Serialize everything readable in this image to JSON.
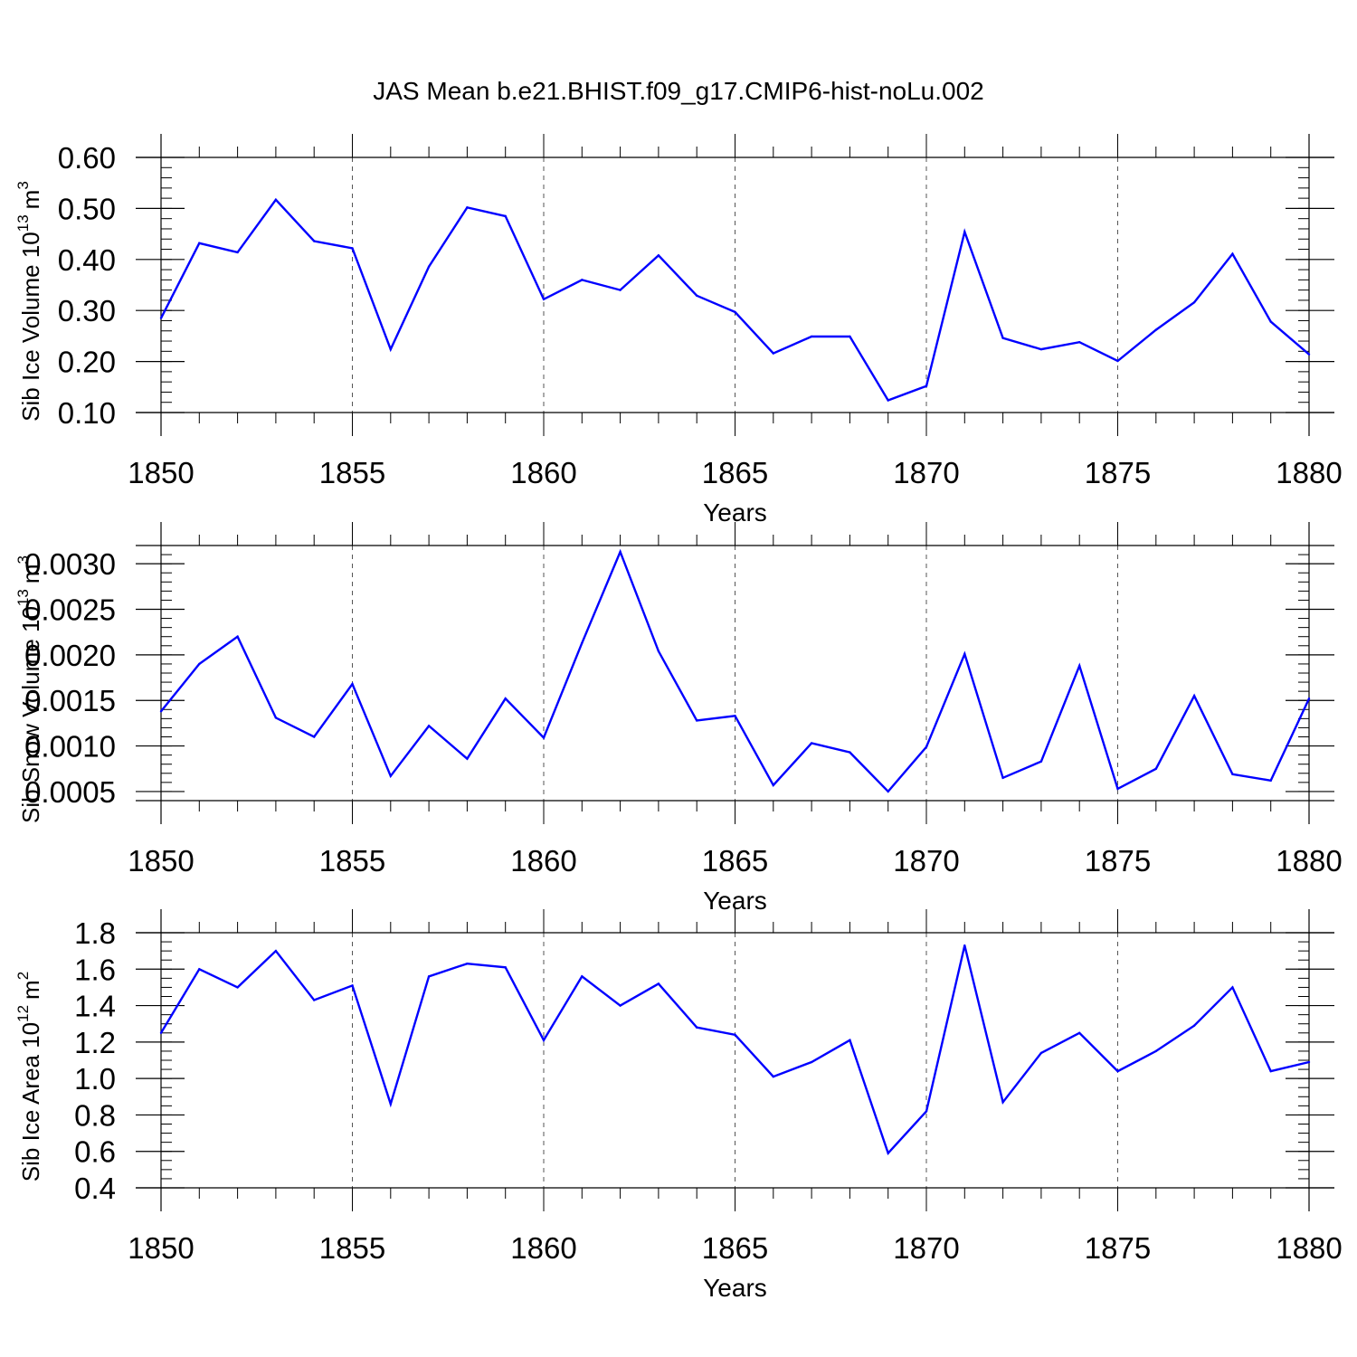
{
  "chart_data": [
    {
      "type": "line",
      "title": "JAS Mean b.e21.BHIST.f09_g17.CMIP6-hist-noLu.002",
      "xlabel": "Years",
      "ylabel": {
        "text": "Sib Ice Volume 10",
        "exponent": "13",
        "unit": "m",
        "unit_exponent": "3"
      },
      "xlim": [
        1850,
        1880
      ],
      "ylim": [
        0.1,
        0.6
      ],
      "x_ticks": [
        "1850",
        "1855",
        "1860",
        "1865",
        "1870",
        "1875",
        "1880"
      ],
      "y_ticks": [
        "0.10",
        "0.20",
        "0.30",
        "0.40",
        "0.50",
        "0.60"
      ],
      "y_tick_values": [
        0.1,
        0.2,
        0.3,
        0.4,
        0.5,
        0.6
      ],
      "y_minor_step": 0.02,
      "grid": "x-dashed",
      "line_color": "#0000ff",
      "x": [
        1850,
        1851,
        1852,
        1853,
        1854,
        1855,
        1856,
        1857,
        1858,
        1859,
        1860,
        1861,
        1862,
        1863,
        1864,
        1865,
        1866,
        1867,
        1868,
        1869,
        1870,
        1871,
        1872,
        1873,
        1874,
        1875,
        1876,
        1877,
        1878,
        1879,
        1880
      ],
      "values": [
        0.285,
        0.432,
        0.414,
        0.517,
        0.436,
        0.422,
        0.224,
        0.386,
        0.502,
        0.485,
        0.322,
        0.36,
        0.34,
        0.408,
        0.329,
        0.297,
        0.216,
        0.249,
        0.249,
        0.124,
        0.152,
        0.454,
        0.246,
        0.224,
        0.238,
        0.201,
        0.262,
        0.316,
        0.411,
        0.278,
        0.214
      ]
    },
    {
      "type": "line",
      "title": "",
      "xlabel": "Years",
      "ylabel": {
        "text": "Sib Snow Volume 10",
        "exponent": "13",
        "unit": "m",
        "unit_exponent": "3"
      },
      "xlim": [
        1850,
        1880
      ],
      "ylim": [
        0.0004,
        0.0032
      ],
      "x_ticks": [
        "1850",
        "1855",
        "1860",
        "1865",
        "1870",
        "1875",
        "1880"
      ],
      "y_ticks": [
        "0.0005",
        "0.0010",
        "0.0015",
        "0.0020",
        "0.0025",
        "0.0030"
      ],
      "y_tick_values": [
        0.0005,
        0.001,
        0.0015,
        0.002,
        0.0025,
        0.003
      ],
      "y_minor_step": 0.0001,
      "grid": "x-dashed",
      "line_color": "#0000ff",
      "x": [
        1850,
        1851,
        1852,
        1853,
        1854,
        1855,
        1856,
        1857,
        1858,
        1859,
        1860,
        1861,
        1862,
        1863,
        1864,
        1865,
        1866,
        1867,
        1868,
        1869,
        1870,
        1871,
        1872,
        1873,
        1874,
        1875,
        1876,
        1877,
        1878,
        1879,
        1880
      ],
      "values": [
        0.00138,
        0.0019,
        0.0022,
        0.00131,
        0.0011,
        0.00168,
        0.00067,
        0.00122,
        0.00086,
        0.00152,
        0.00109,
        0.00213,
        0.00313,
        0.00204,
        0.00128,
        0.00133,
        0.00057,
        0.00103,
        0.00093,
        0.0005,
        0.00099,
        0.00201,
        0.00065,
        0.00083,
        0.00188,
        0.00053,
        0.00075,
        0.00155,
        0.00069,
        0.00062,
        0.00152
      ]
    },
    {
      "type": "line",
      "title": "",
      "xlabel": "Years",
      "ylabel": {
        "text": "Sib Ice Area 10",
        "exponent": "12",
        "unit": "m",
        "unit_exponent": "2"
      },
      "xlim": [
        1850,
        1880
      ],
      "ylim": [
        0.4,
        1.8
      ],
      "x_ticks": [
        "1850",
        "1855",
        "1860",
        "1865",
        "1870",
        "1875",
        "1880"
      ],
      "y_ticks": [
        "0.4",
        "0.6",
        "0.8",
        "1.0",
        "1.2",
        "1.4",
        "1.6",
        "1.8"
      ],
      "y_tick_values": [
        0.4,
        0.6,
        0.8,
        1.0,
        1.2,
        1.4,
        1.6,
        1.8
      ],
      "y_minor_step": 0.05,
      "grid": "x-dashed",
      "line_color": "#0000ff",
      "x": [
        1850,
        1851,
        1852,
        1853,
        1854,
        1855,
        1856,
        1857,
        1858,
        1859,
        1860,
        1861,
        1862,
        1863,
        1864,
        1865,
        1866,
        1867,
        1868,
        1869,
        1870,
        1871,
        1872,
        1873,
        1874,
        1875,
        1876,
        1877,
        1878,
        1879,
        1880
      ],
      "values": [
        1.25,
        1.6,
        1.5,
        1.7,
        1.43,
        1.51,
        0.86,
        1.56,
        1.63,
        1.61,
        1.21,
        1.56,
        1.4,
        1.52,
        1.28,
        1.24,
        1.01,
        1.09,
        1.21,
        0.59,
        0.82,
        1.73,
        0.87,
        1.14,
        1.25,
        1.04,
        1.15,
        1.29,
        1.5,
        1.04,
        1.09
      ]
    }
  ]
}
